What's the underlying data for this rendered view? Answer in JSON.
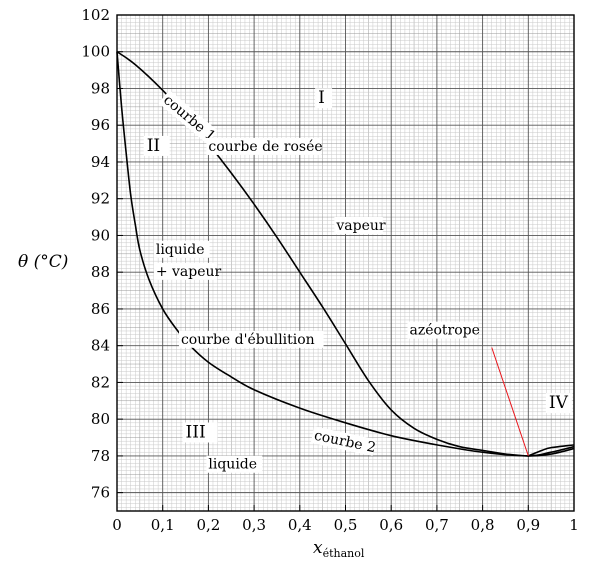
{
  "chart_data": {
    "type": "line",
    "title": "",
    "xlabel_main": "x",
    "xlabel_sub": "éthanol",
    "ylabel": "θ (°C)",
    "xlim": [
      0,
      1
    ],
    "ylim": [
      75,
      102
    ],
    "grid": true,
    "x_ticks": [
      {
        "v": 0,
        "label": "0"
      },
      {
        "v": 0.1,
        "label": "0,1"
      },
      {
        "v": 0.2,
        "label": "0,2"
      },
      {
        "v": 0.3,
        "label": "0,3"
      },
      {
        "v": 0.4,
        "label": "0,4"
      },
      {
        "v": 0.5,
        "label": "0,5"
      },
      {
        "v": 0.6,
        "label": "0,6"
      },
      {
        "v": 0.7,
        "label": "0,7"
      },
      {
        "v": 0.8,
        "label": "0,8"
      },
      {
        "v": 0.9,
        "label": "0,9"
      },
      {
        "v": 1,
        "label": "1"
      }
    ],
    "y_ticks": [
      {
        "v": 76,
        "label": "76"
      },
      {
        "v": 78,
        "label": "78"
      },
      {
        "v": 80,
        "label": "80"
      },
      {
        "v": 82,
        "label": "82"
      },
      {
        "v": 84,
        "label": "84"
      },
      {
        "v": 86,
        "label": "86"
      },
      {
        "v": 88,
        "label": "88"
      },
      {
        "v": 90,
        "label": "90"
      },
      {
        "v": 92,
        "label": "92"
      },
      {
        "v": 94,
        "label": "94"
      },
      {
        "v": 96,
        "label": "96"
      },
      {
        "v": 98,
        "label": "98"
      },
      {
        "v": 100,
        "label": "100"
      },
      {
        "v": 102,
        "label": "102"
      }
    ],
    "series": [
      {
        "key": "dew",
        "points": [
          [
            0,
            100
          ],
          [
            0.04,
            99.3
          ],
          [
            0.1,
            97.9
          ],
          [
            0.15,
            96.5
          ],
          [
            0.2,
            95.0
          ],
          [
            0.25,
            93.4
          ],
          [
            0.3,
            91.7
          ],
          [
            0.35,
            89.9
          ],
          [
            0.4,
            88.0
          ],
          [
            0.45,
            86.1
          ],
          [
            0.5,
            84.1
          ],
          [
            0.55,
            82.1
          ],
          [
            0.6,
            80.5
          ],
          [
            0.65,
            79.5
          ],
          [
            0.7,
            78.9
          ],
          [
            0.75,
            78.5
          ],
          [
            0.8,
            78.3
          ],
          [
            0.85,
            78.1
          ],
          [
            0.9,
            78.0
          ],
          [
            0.95,
            78.1
          ],
          [
            1,
            78.4
          ]
        ]
      },
      {
        "key": "boiling",
        "points": [
          [
            0,
            100
          ],
          [
            0.01,
            97.0
          ],
          [
            0.02,
            94.5
          ],
          [
            0.03,
            92.2
          ],
          [
            0.04,
            90.6
          ],
          [
            0.05,
            89.2
          ],
          [
            0.07,
            87.6
          ],
          [
            0.1,
            86.0
          ],
          [
            0.13,
            84.9
          ],
          [
            0.16,
            84.0
          ],
          [
            0.2,
            83.1
          ],
          [
            0.25,
            82.3
          ],
          [
            0.3,
            81.6
          ],
          [
            0.4,
            80.6
          ],
          [
            0.5,
            79.8
          ],
          [
            0.6,
            79.1
          ],
          [
            0.7,
            78.6
          ],
          [
            0.8,
            78.2
          ],
          [
            0.9,
            78.0
          ],
          [
            0.95,
            78.2
          ],
          [
            1,
            78.5
          ]
        ]
      },
      {
        "key": "azeotrope_branch",
        "points": [
          [
            0.9,
            78.0
          ],
          [
            0.93,
            78.3
          ],
          [
            0.95,
            78.45
          ],
          [
            1,
            78.6
          ]
        ]
      }
    ],
    "annotations": [
      {
        "key": "courbe1",
        "text": "courbe 1",
        "x": 0.1,
        "y": 97.3,
        "rotate": 40,
        "color": "#000000"
      },
      {
        "key": "courbe2",
        "text": "courbe 2",
        "x": 0.43,
        "y": 78.9,
        "rotate": 12,
        "color": "#000000"
      },
      {
        "key": "rosee",
        "text": "courbe de rosée",
        "x": 0.2,
        "y": 94.6,
        "rotate": 0,
        "color": "#e8141a"
      },
      {
        "key": "ebullition",
        "text": "courbe d'ébullition",
        "x": 0.14,
        "y": 84.1,
        "rotate": 0,
        "color": "#e8141a"
      },
      {
        "key": "azeotrope",
        "text": "azéotrope",
        "x": 0.64,
        "y": 84.6,
        "rotate": 0,
        "color": "#e8141a"
      },
      {
        "key": "vapeur",
        "text": "vapeur",
        "x": 0.48,
        "y": 90.3,
        "rotate": 0,
        "color": "#000000"
      },
      {
        "key": "liquide_vapeur_1",
        "text": "liquide",
        "x": 0.085,
        "y": 89.0,
        "rotate": 0,
        "color": "#000000"
      },
      {
        "key": "liquide_vapeur_2",
        "text": "+ vapeur",
        "x": 0.085,
        "y": 87.8,
        "rotate": 0,
        "color": "#000000"
      },
      {
        "key": "liquide",
        "text": "liquide",
        "x": 0.2,
        "y": 77.3,
        "rotate": 0,
        "color": "#000000"
      }
    ],
    "regions": [
      {
        "key": "I",
        "text": "I",
        "x": 0.44,
        "y": 97.2
      },
      {
        "key": "II",
        "text": "II",
        "x": 0.065,
        "y": 94.6
      },
      {
        "key": "III",
        "text": "III",
        "x": 0.15,
        "y": 79.0
      },
      {
        "key": "IV",
        "text": "IV",
        "x": 0.945,
        "y": 80.6
      }
    ],
    "arrow": {
      "from": [
        0.82,
        83.9
      ],
      "to": [
        0.9,
        78.0
      ]
    }
  }
}
